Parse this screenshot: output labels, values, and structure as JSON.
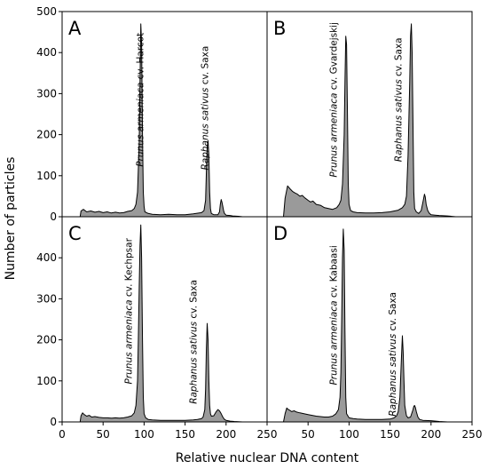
{
  "figure": {
    "ylabel": "Number of particles",
    "xlabel": "Relative nuclear DNA content"
  },
  "chart_data": [
    {
      "type": "area",
      "panel": "A",
      "xlim": [
        0,
        250
      ],
      "ylim": [
        0,
        500
      ],
      "x_ticks": [
        "0",
        "50",
        "100",
        "150",
        "200",
        "250"
      ],
      "y_ticks": [
        "0",
        "100",
        "200",
        "300",
        "400",
        "500"
      ],
      "annotations": [
        {
          "species": "Prunus armeniaca",
          "cv": " cv. Harcot",
          "x": 99,
          "y": 285
        },
        {
          "species": "Raphanus sativus",
          "cv": " cv. Saxa",
          "x": 178,
          "y": 265
        }
      ],
      "series": [
        {
          "points": [
            [
              22,
              0
            ],
            [
              23,
              14
            ],
            [
              26,
              18
            ],
            [
              30,
              12
            ],
            [
              35,
              14
            ],
            [
              40,
              11
            ],
            [
              45,
              13
            ],
            [
              50,
              10
            ],
            [
              55,
              12
            ],
            [
              60,
              9
            ],
            [
              65,
              11
            ],
            [
              70,
              9
            ],
            [
              75,
              10
            ],
            [
              80,
              13
            ],
            [
              85,
              15
            ],
            [
              88,
              20
            ],
            [
              90,
              30
            ],
            [
              92,
              60
            ],
            [
              94,
              180
            ],
            [
              95,
              330
            ],
            [
              96,
              470
            ],
            [
              97,
              420
            ],
            [
              98,
              200
            ],
            [
              99,
              60
            ],
            [
              100,
              25
            ],
            [
              101,
              12
            ],
            [
              105,
              8
            ],
            [
              110,
              6
            ],
            [
              120,
              5
            ],
            [
              130,
              6
            ],
            [
              140,
              5
            ],
            [
              150,
              5
            ],
            [
              160,
              7
            ],
            [
              170,
              10
            ],
            [
              173,
              15
            ],
            [
              175,
              40
            ],
            [
              176,
              110
            ],
            [
              177,
              170
            ],
            [
              178,
              185
            ],
            [
              179,
              150
            ],
            [
              180,
              60
            ],
            [
              181,
              20
            ],
            [
              182,
              8
            ],
            [
              185,
              5
            ],
            [
              190,
              5
            ],
            [
              192,
              12
            ],
            [
              193,
              30
            ],
            [
              194,
              42
            ],
            [
              195,
              35
            ],
            [
              196,
              25
            ],
            [
              197,
              15
            ],
            [
              198,
              8
            ],
            [
              200,
              4
            ],
            [
              205,
              3
            ],
            [
              208,
              2
            ],
            [
              215,
              1
            ],
            [
              220,
              0
            ],
            [
              230,
              0
            ]
          ]
        }
      ]
    },
    {
      "type": "area",
      "panel": "B",
      "xlim": [
        0,
        250
      ],
      "ylim": [
        0,
        500
      ],
      "x_ticks": [
        "0",
        "50",
        "100",
        "150",
        "200",
        "250"
      ],
      "y_ticks": [
        "0",
        "100",
        "200",
        "300",
        "400",
        "500"
      ],
      "annotations": [
        {
          "species": "Prunus armeniaca",
          "cv": " cv. Gvardejskij",
          "x": 85,
          "y": 285
        },
        {
          "species": "Raphanus sativus",
          "cv": " cv. Saxa",
          "x": 164,
          "y": 285
        }
      ],
      "series": [
        {
          "points": [
            [
              20,
              0
            ],
            [
              22,
              45
            ],
            [
              25,
              75
            ],
            [
              28,
              68
            ],
            [
              31,
              62
            ],
            [
              34,
              58
            ],
            [
              37,
              55
            ],
            [
              40,
              50
            ],
            [
              43,
              52
            ],
            [
              46,
              46
            ],
            [
              50,
              40
            ],
            [
              53,
              36
            ],
            [
              56,
              38
            ],
            [
              60,
              30
            ],
            [
              65,
              28
            ],
            [
              70,
              22
            ],
            [
              75,
              20
            ],
            [
              80,
              18
            ],
            [
              85,
              22
            ],
            [
              88,
              30
            ],
            [
              90,
              40
            ],
            [
              92,
              80
            ],
            [
              94,
              200
            ],
            [
              95,
              330
            ],
            [
              96,
              440
            ],
            [
              97,
              420
            ],
            [
              98,
              250
            ],
            [
              99,
              80
            ],
            [
              100,
              30
            ],
            [
              102,
              15
            ],
            [
              105,
              12
            ],
            [
              110,
              10
            ],
            [
              120,
              9
            ],
            [
              130,
              9
            ],
            [
              140,
              10
            ],
            [
              150,
              12
            ],
            [
              160,
              16
            ],
            [
              165,
              22
            ],
            [
              168,
              30
            ],
            [
              170,
              50
            ],
            [
              172,
              150
            ],
            [
              174,
              330
            ],
            [
              175,
              440
            ],
            [
              176,
              470
            ],
            [
              177,
              400
            ],
            [
              178,
              220
            ],
            [
              179,
              60
            ],
            [
              180,
              20
            ],
            [
              182,
              12
            ],
            [
              185,
              8
            ],
            [
              188,
              15
            ],
            [
              190,
              35
            ],
            [
              191,
              45
            ],
            [
              192,
              55
            ],
            [
              193,
              48
            ],
            [
              194,
              30
            ],
            [
              196,
              15
            ],
            [
              198,
              8
            ],
            [
              200,
              5
            ],
            [
              205,
              4
            ],
            [
              210,
              3
            ],
            [
              220,
              2
            ],
            [
              230,
              0
            ]
          ]
        }
      ]
    },
    {
      "type": "area",
      "panel": "C",
      "xlim": [
        0,
        250
      ],
      "ylim": [
        0,
        500
      ],
      "x_ticks": [
        "0",
        "50",
        "100",
        "150",
        "200",
        "250"
      ],
      "y_ticks": [
        "0",
        "100",
        "200",
        "300",
        "400",
        "500"
      ],
      "annotations": [
        {
          "species": "Prunus armeniaca",
          "cv": " cv. Kechpsar",
          "x": 85,
          "y": 270
        },
        {
          "species": "Raphanus sativus",
          "cv": " cv. Saxa",
          "x": 164,
          "y": 195
        }
      ],
      "series": [
        {
          "points": [
            [
              22,
              0
            ],
            [
              23,
              15
            ],
            [
              25,
              22
            ],
            [
              27,
              18
            ],
            [
              30,
              14
            ],
            [
              33,
              16
            ],
            [
              36,
              12
            ],
            [
              40,
              13
            ],
            [
              45,
              11
            ],
            [
              50,
              10
            ],
            [
              55,
              10
            ],
            [
              60,
              9
            ],
            [
              65,
              10
            ],
            [
              70,
              9
            ],
            [
              75,
              10
            ],
            [
              80,
              12
            ],
            [
              85,
              15
            ],
            [
              88,
              22
            ],
            [
              90,
              40
            ],
            [
              92,
              100
            ],
            [
              93,
              200
            ],
            [
              94,
              330
            ],
            [
              95,
              430
            ],
            [
              96,
              480
            ],
            [
              97,
              400
            ],
            [
              98,
              200
            ],
            [
              99,
              60
            ],
            [
              100,
              20
            ],
            [
              102,
              10
            ],
            [
              105,
              6
            ],
            [
              110,
              5
            ],
            [
              120,
              4
            ],
            [
              130,
              4
            ],
            [
              140,
              4
            ],
            [
              150,
              4
            ],
            [
              160,
              5
            ],
            [
              165,
              6
            ],
            [
              170,
              8
            ],
            [
              172,
              12
            ],
            [
              174,
              30
            ],
            [
              175,
              80
            ],
            [
              176,
              180
            ],
            [
              177,
              240
            ],
            [
              178,
              200
            ],
            [
              179,
              100
            ],
            [
              180,
              40
            ],
            [
              181,
              20
            ],
            [
              182,
              14
            ],
            [
              185,
              15
            ],
            [
              188,
              25
            ],
            [
              190,
              30
            ],
            [
              192,
              27
            ],
            [
              194,
              20
            ],
            [
              196,
              12
            ],
            [
              198,
              6
            ],
            [
              200,
              4
            ],
            [
              205,
              2
            ],
            [
              210,
              1
            ],
            [
              220,
              0
            ],
            [
              230,
              0
            ]
          ]
        }
      ]
    },
    {
      "type": "area",
      "panel": "D",
      "xlim": [
        0,
        250
      ],
      "ylim": [
        0,
        500
      ],
      "x_ticks": [
        "0",
        "50",
        "100",
        "150",
        "200",
        "250"
      ],
      "y_ticks": [
        "0",
        "100",
        "200",
        "300",
        "400",
        "500"
      ],
      "annotations": [
        {
          "species": "Prunus armeniaca",
          "cv": " cv. Kabaasi",
          "x": 85,
          "y": 260
        },
        {
          "species": "Raphanus sativus",
          "cv": " cv. Saxa",
          "x": 157,
          "y": 165
        }
      ],
      "series": [
        {
          "points": [
            [
              20,
              0
            ],
            [
              22,
              20
            ],
            [
              24,
              34
            ],
            [
              26,
              30
            ],
            [
              28,
              28
            ],
            [
              30,
              25
            ],
            [
              33,
              27
            ],
            [
              36,
              24
            ],
            [
              40,
              22
            ],
            [
              45,
              20
            ],
            [
              50,
              18
            ],
            [
              55,
              16
            ],
            [
              60,
              14
            ],
            [
              65,
              13
            ],
            [
              70,
              12
            ],
            [
              75,
              12
            ],
            [
              80,
              14
            ],
            [
              84,
              20
            ],
            [
              87,
              30
            ],
            [
              89,
              60
            ],
            [
              90,
              120
            ],
            [
              91,
              250
            ],
            [
              92,
              400
            ],
            [
              93,
              470
            ],
            [
              94,
              420
            ],
            [
              95,
              220
            ],
            [
              96,
              60
            ],
            [
              97,
              20
            ],
            [
              100,
              10
            ],
            [
              105,
              8
            ],
            [
              110,
              7
            ],
            [
              120,
              6
            ],
            [
              130,
              6
            ],
            [
              140,
              6
            ],
            [
              150,
              7
            ],
            [
              155,
              10
            ],
            [
              158,
              15
            ],
            [
              160,
              25
            ],
            [
              162,
              60
            ],
            [
              164,
              160
            ],
            [
              165,
              210
            ],
            [
              166,
              170
            ],
            [
              167,
              100
            ],
            [
              168,
              40
            ],
            [
              170,
              15
            ],
            [
              172,
              10
            ],
            [
              175,
              12
            ],
            [
              178,
              30
            ],
            [
              179,
              38
            ],
            [
              180,
              40
            ],
            [
              181,
              35
            ],
            [
              182,
              25
            ],
            [
              184,
              12
            ],
            [
              186,
              6
            ],
            [
              190,
              4
            ],
            [
              200,
              3
            ],
            [
              210,
              1
            ],
            [
              220,
              0
            ],
            [
              230,
              0
            ]
          ]
        }
      ]
    }
  ]
}
